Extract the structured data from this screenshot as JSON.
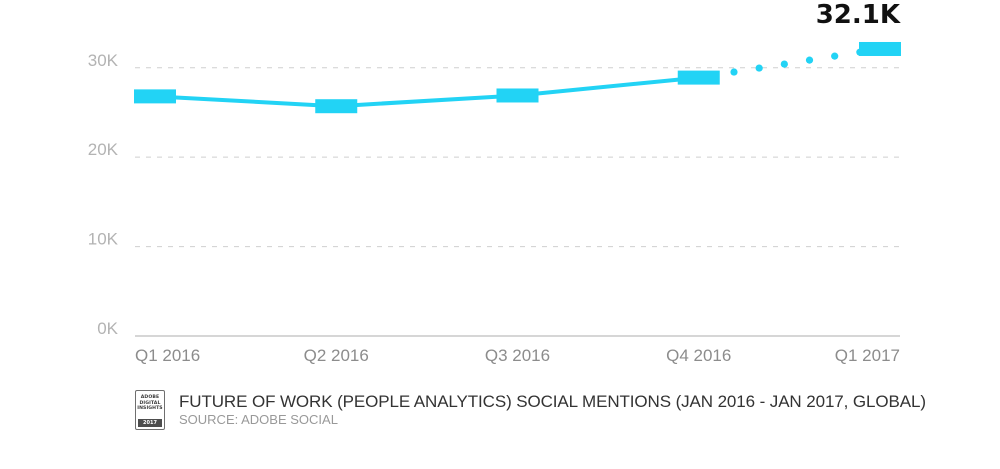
{
  "chart_data": {
    "type": "line",
    "categories": [
      "Q1 2016",
      "Q2 2016",
      "Q3 2016",
      "Q4 2016",
      "Q1 2017"
    ],
    "values": [
      26800,
      25700,
      26900,
      28900,
      32100
    ],
    "projected_from_index": 3,
    "y_ticks": [
      "0K",
      "10K",
      "20K",
      "30K"
    ],
    "y_tick_values": [
      0,
      10000,
      20000,
      30000
    ],
    "ylim": [
      0,
      34000
    ],
    "grid": true,
    "callout": {
      "index": 4,
      "label": "32.1K"
    },
    "colors": {
      "line": "#22d3f5",
      "grid": "#cfcfcf",
      "baseline": "#bdbdbd"
    }
  },
  "footer": {
    "badge": {
      "lines": [
        "ADOBE",
        "DIGITAL",
        "INSIGHTS"
      ],
      "year": "2017"
    },
    "caption": "FUTURE OF WORK (PEOPLE ANALYTICS) SOCIAL MENTIONS (JAN 2016 - JAN 2017, GLOBAL)",
    "source": "SOURCE: ADOBE SOCIAL"
  }
}
